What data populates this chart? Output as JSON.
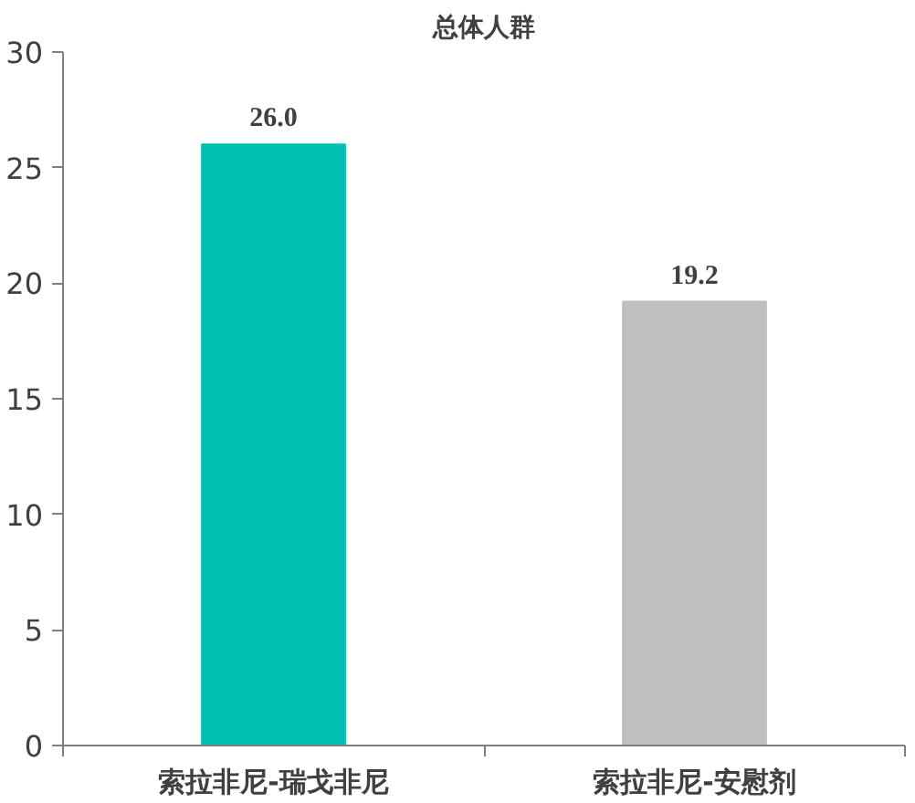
{
  "chart_data": {
    "type": "bar",
    "title": "总体人群",
    "categories": [
      "索拉非尼-瑞戈非尼",
      "索拉非尼-安慰剂"
    ],
    "values": [
      26.0,
      19.2
    ],
    "colors": [
      "#00bfb3",
      "#bfbfbf"
    ],
    "ylim": [
      0,
      30
    ],
    "yticks": [
      0,
      5,
      10,
      15,
      20,
      25,
      30
    ],
    "grid": false,
    "value_labels": [
      "26.0",
      "19.2"
    ]
  }
}
